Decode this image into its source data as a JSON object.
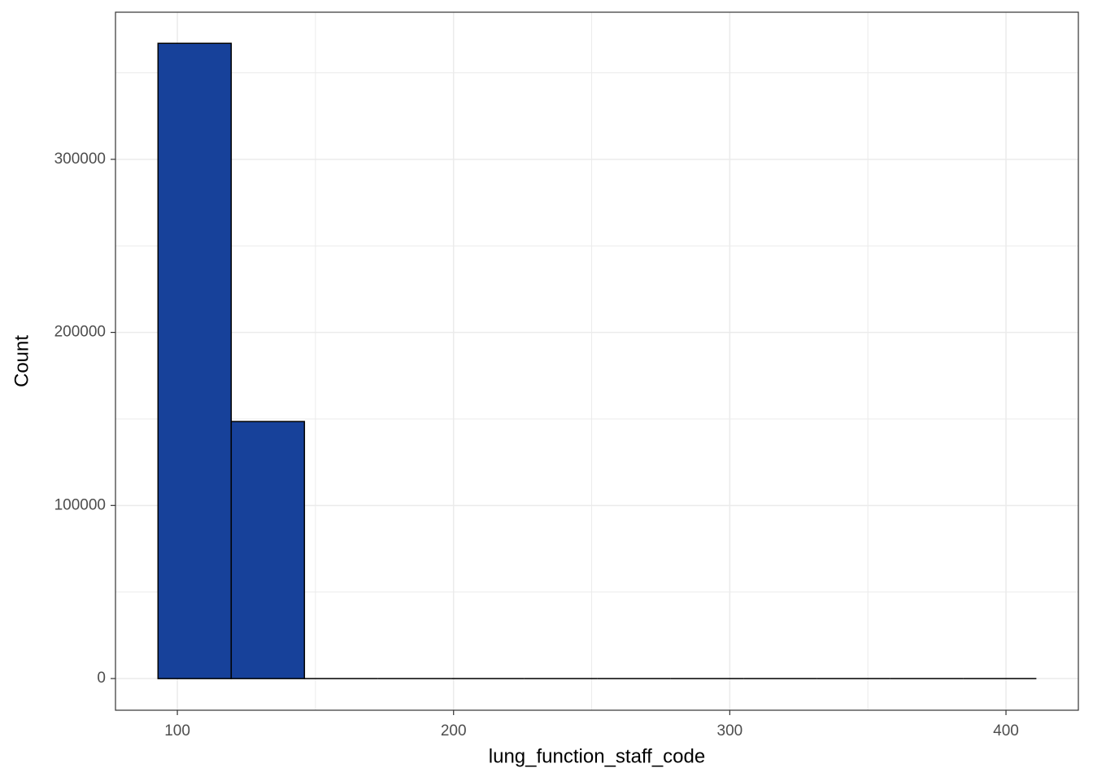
{
  "chart_data": {
    "type": "histogram",
    "x_label": "lung_function_staff_code",
    "y_label": "Count",
    "bins": [
      93,
      119.5,
      146,
      172.5,
      199,
      225.5,
      252,
      278.5,
      305,
      331.5,
      358,
      384.5,
      411
    ],
    "counts": [
      367000,
      148500,
      0,
      0,
      0,
      0,
      0,
      0,
      0,
      0,
      0,
      0
    ],
    "color": "#17419a",
    "edge_color": "#000000",
    "xlim": [
      77.6,
      426.2
    ],
    "ylim": [
      -18300,
      385000
    ],
    "xticks": [
      100,
      200,
      300,
      400
    ],
    "yticks": [
      0,
      100000,
      200000,
      300000
    ],
    "x_minor_grid": [
      150,
      250,
      350
    ],
    "y_minor_grid": [
      50000,
      150000,
      250000,
      350000
    ],
    "grid": true
  }
}
